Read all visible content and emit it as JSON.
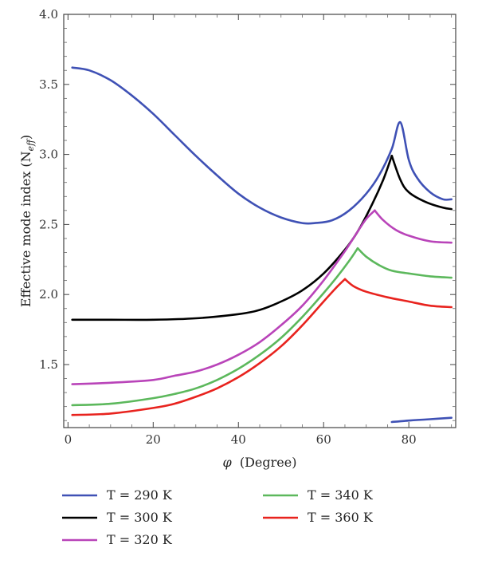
{
  "chart_data": {
    "type": "line",
    "title": "",
    "xlabel": "(Degree)",
    "xlabel_symbol": "φ",
    "ylabel": "Effective mode index (N",
    "ylabel_sub": "eff",
    "ylabel_close": ")",
    "xlim": [
      -1,
      91
    ],
    "ylim": [
      1.05,
      4.0
    ],
    "x_ticks": [
      0,
      20,
      40,
      60,
      80
    ],
    "x_tick_labels": [
      "0",
      "20",
      "40",
      "60",
      "80"
    ],
    "y_ticks": [
      1.5,
      2.0,
      2.5,
      3.0,
      3.5,
      4.0
    ],
    "y_tick_labels": [
      "1.5",
      "2.0",
      "2.5",
      "3.0",
      "3.5",
      "4.0"
    ],
    "grid": false,
    "legend_placement": "bottom",
    "series": [
      {
        "name": "T = 290 K",
        "color": "#3f51b5",
        "points": [
          [
            1,
            3.62
          ],
          [
            5,
            3.6
          ],
          [
            10,
            3.53
          ],
          [
            15,
            3.42
          ],
          [
            20,
            3.29
          ],
          [
            25,
            3.14
          ],
          [
            30,
            2.99
          ],
          [
            35,
            2.85
          ],
          [
            40,
            2.72
          ],
          [
            45,
            2.62
          ],
          [
            50,
            2.55
          ],
          [
            55,
            2.51
          ],
          [
            58,
            2.51
          ],
          [
            62,
            2.53
          ],
          [
            66,
            2.6
          ],
          [
            70,
            2.72
          ],
          [
            73,
            2.85
          ],
          [
            76,
            3.04
          ],
          [
            78,
            3.23
          ],
          [
            80,
            2.96
          ],
          [
            82,
            2.83
          ],
          [
            85,
            2.73
          ],
          [
            88,
            2.68
          ],
          [
            90,
            2.68
          ]
        ],
        "lower_branch": [
          [
            76,
            1.09
          ],
          [
            80,
            1.1
          ],
          [
            85,
            1.11
          ],
          [
            90,
            1.12
          ]
        ]
      },
      {
        "name": "T = 300 K",
        "color": "#000000",
        "points": [
          [
            1,
            1.82
          ],
          [
            10,
            1.82
          ],
          [
            20,
            1.82
          ],
          [
            30,
            1.83
          ],
          [
            40,
            1.86
          ],
          [
            45,
            1.89
          ],
          [
            50,
            1.95
          ],
          [
            55,
            2.03
          ],
          [
            60,
            2.15
          ],
          [
            65,
            2.32
          ],
          [
            68,
            2.45
          ],
          [
            71,
            2.62
          ],
          [
            74,
            2.82
          ],
          [
            76,
            2.99
          ],
          [
            78,
            2.82
          ],
          [
            80,
            2.73
          ],
          [
            84,
            2.66
          ],
          [
            88,
            2.62
          ],
          [
            90,
            2.61
          ]
        ]
      },
      {
        "name": "T = 320 K",
        "color": "#b944b9",
        "points": [
          [
            1,
            1.36
          ],
          [
            10,
            1.37
          ],
          [
            20,
            1.39
          ],
          [
            25,
            1.42
          ],
          [
            30,
            1.45
          ],
          [
            35,
            1.5
          ],
          [
            40,
            1.57
          ],
          [
            45,
            1.66
          ],
          [
            50,
            1.78
          ],
          [
            55,
            1.92
          ],
          [
            60,
            2.1
          ],
          [
            65,
            2.31
          ],
          [
            68,
            2.45
          ],
          [
            70,
            2.54
          ],
          [
            72,
            2.6
          ],
          [
            74,
            2.53
          ],
          [
            77,
            2.46
          ],
          [
            80,
            2.42
          ],
          [
            85,
            2.38
          ],
          [
            90,
            2.37
          ]
        ]
      },
      {
        "name": "T = 340 K",
        "color": "#5cb85c",
        "points": [
          [
            1,
            1.21
          ],
          [
            10,
            1.22
          ],
          [
            20,
            1.26
          ],
          [
            25,
            1.29
          ],
          [
            30,
            1.33
          ],
          [
            35,
            1.39
          ],
          [
            40,
            1.47
          ],
          [
            45,
            1.57
          ],
          [
            50,
            1.69
          ],
          [
            55,
            1.84
          ],
          [
            60,
            2.01
          ],
          [
            63,
            2.12
          ],
          [
            66,
            2.24
          ],
          [
            68,
            2.33
          ],
          [
            70,
            2.27
          ],
          [
            73,
            2.21
          ],
          [
            76,
            2.17
          ],
          [
            80,
            2.15
          ],
          [
            85,
            2.13
          ],
          [
            90,
            2.12
          ]
        ]
      },
      {
        "name": "T = 360 K",
        "color": "#e8231e",
        "points": [
          [
            1,
            1.14
          ],
          [
            10,
            1.15
          ],
          [
            20,
            1.19
          ],
          [
            25,
            1.22
          ],
          [
            30,
            1.27
          ],
          [
            35,
            1.33
          ],
          [
            40,
            1.41
          ],
          [
            45,
            1.51
          ],
          [
            50,
            1.63
          ],
          [
            55,
            1.78
          ],
          [
            60,
            1.95
          ],
          [
            63,
            2.05
          ],
          [
            65,
            2.11
          ],
          [
            67,
            2.06
          ],
          [
            70,
            2.02
          ],
          [
            75,
            1.98
          ],
          [
            80,
            1.95
          ],
          [
            85,
            1.92
          ],
          [
            90,
            1.91
          ]
        ]
      }
    ]
  }
}
